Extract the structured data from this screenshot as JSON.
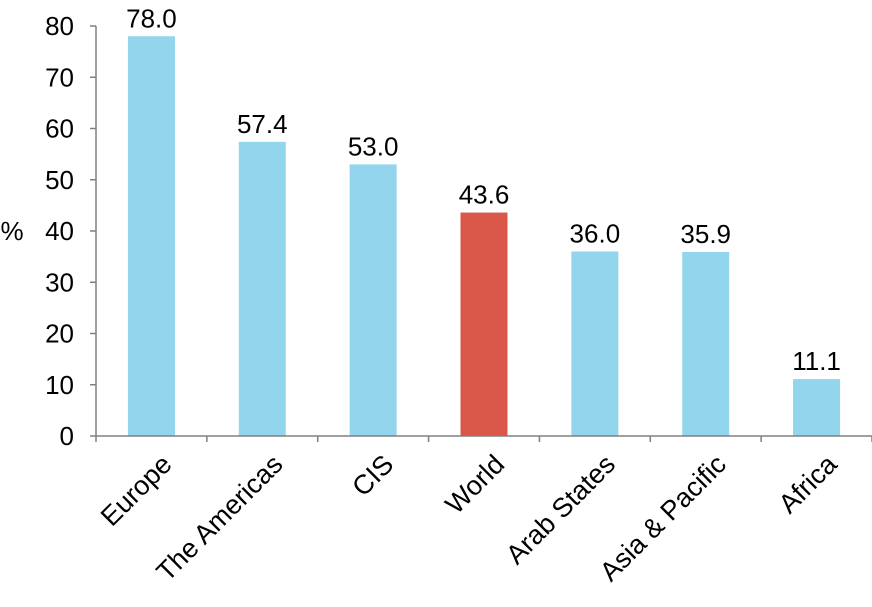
{
  "chart_data": {
    "type": "bar",
    "categories": [
      "Europe",
      "The Americas",
      "CIS",
      "World",
      "Arab States",
      "Asia & Pacific",
      "Africa"
    ],
    "values": [
      78.0,
      57.4,
      53.0,
      43.6,
      36.0,
      35.9,
      11.1
    ],
    "value_labels": [
      "78.0",
      "57.4",
      "53.0",
      "43.6",
      "36.0",
      "35.9",
      "11.1"
    ],
    "ylabel": "%",
    "ylim": [
      0,
      80
    ],
    "yticks": [
      "0",
      "10",
      "20",
      "30",
      "40",
      "50",
      "60",
      "70",
      "80"
    ],
    "grid": false,
    "colors": {
      "default_bar": "#92d5ec",
      "highlight_bar": "#d9584a",
      "axis": "#808080"
    },
    "highlight_category": "World"
  }
}
